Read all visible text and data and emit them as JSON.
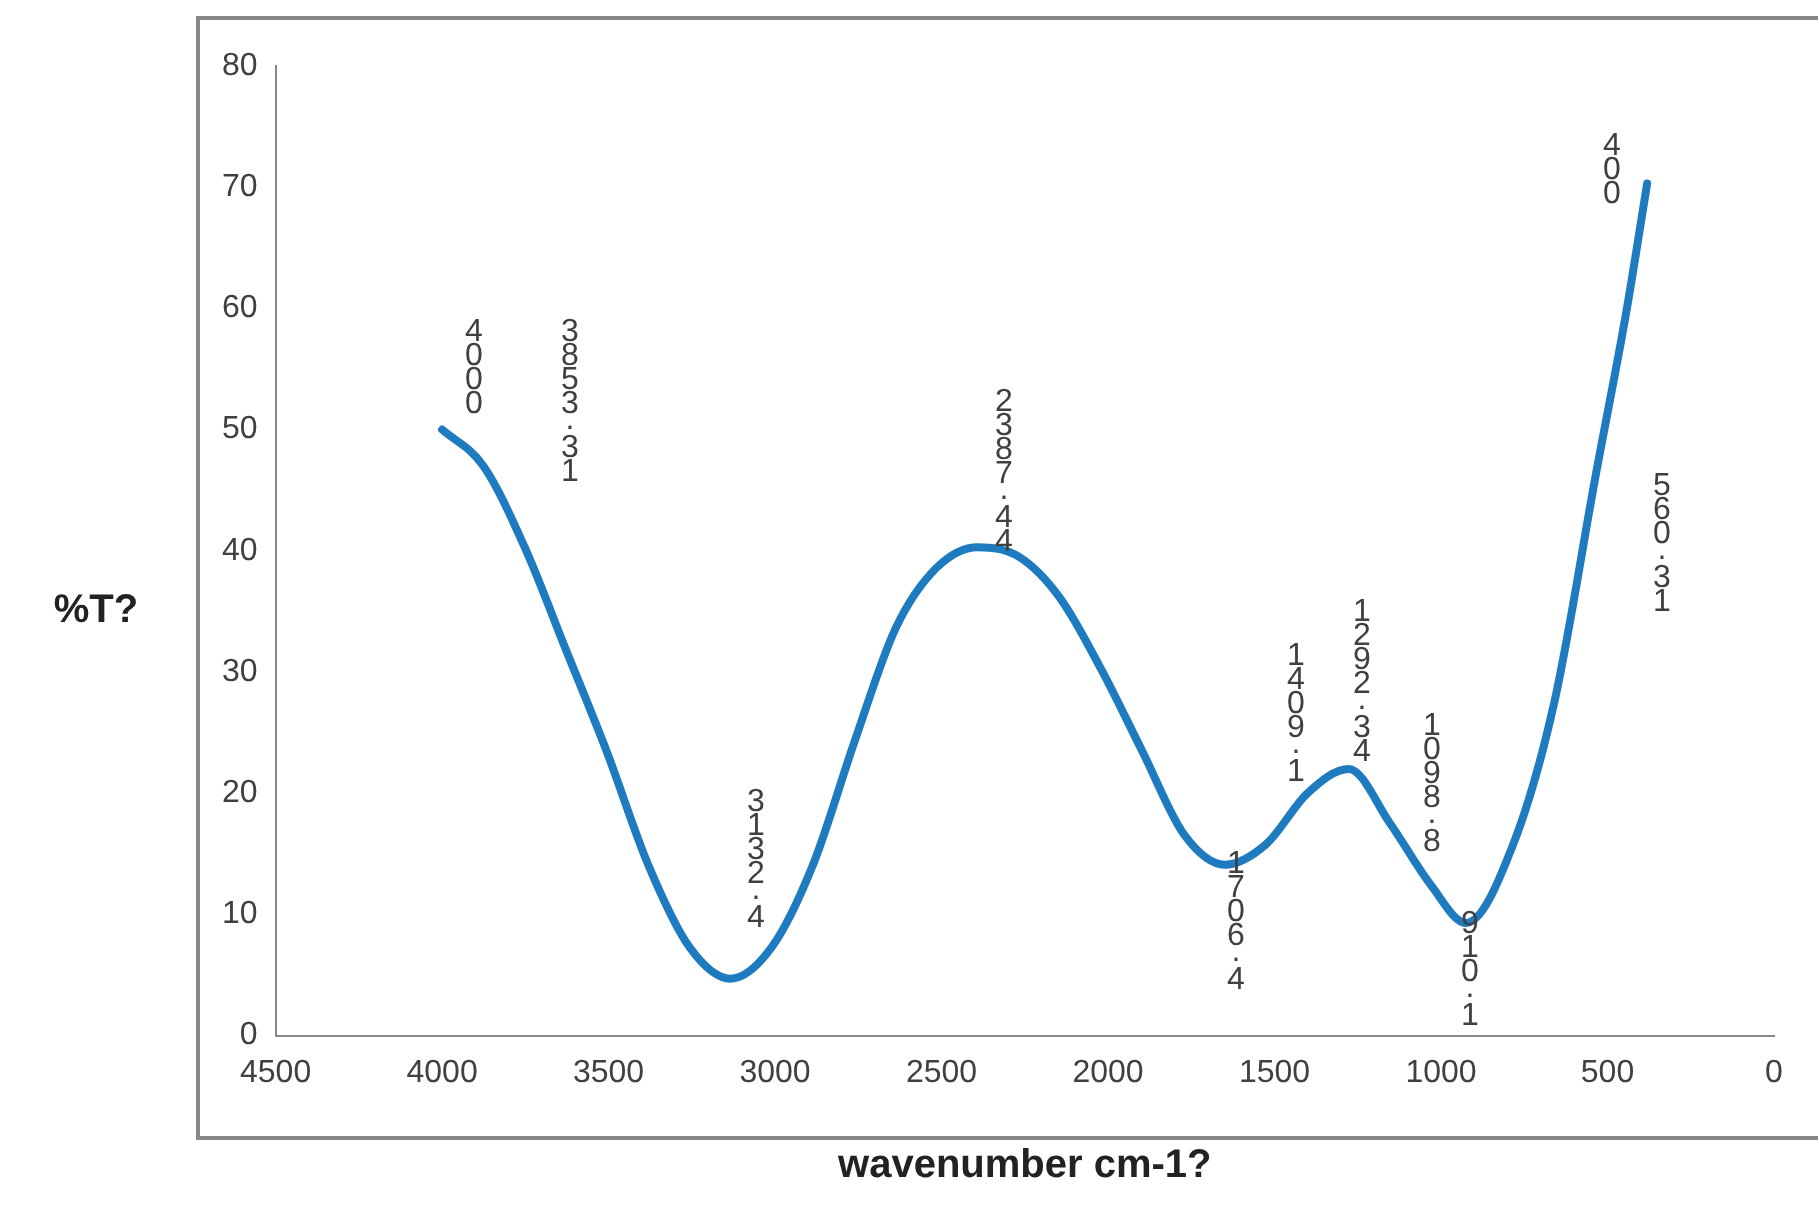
{
  "chart_data": {
    "type": "line",
    "xlabel": "wavenumber cm-1?",
    "ylabel": "%T?",
    "xlim": [
      4500,
      0
    ],
    "xticks": [
      4500,
      4000,
      3500,
      3000,
      2500,
      2000,
      1500,
      1000,
      500,
      0
    ],
    "ylim": [
      0,
      80
    ],
    "yticks": [
      0,
      10,
      20,
      30,
      40,
      50,
      60,
      70,
      80
    ],
    "grid": false,
    "legend": false,
    "marker": "none",
    "line_style": "solid",
    "series": [
      {
        "color": "#1f7bbf",
        "x": [
          4000,
          3876,
          3752,
          3629,
          3505,
          3381,
          3257,
          3134,
          3010,
          2886,
          2762,
          2638,
          2515,
          2391,
          2267,
          2144,
          2020,
          1896,
          1772,
          1649,
          1525,
          1401,
          1277,
          1153,
          1030,
          925,
          783,
          659,
          535,
          443,
          381
        ],
        "values": [
          50,
          47,
          40.3,
          31.9,
          23.4,
          14.1,
          7.3,
          4.7,
          7.3,
          14.1,
          24.2,
          33.6,
          38.6,
          40.3,
          39.5,
          36.1,
          30.2,
          23.4,
          16.6,
          14.1,
          15.8,
          20,
          22,
          17.5,
          12.4,
          9.3,
          15.8,
          27.6,
          46.3,
          59.8,
          70.3
        ]
      }
    ],
    "annotations": [
      "4000",
      "3853.31",
      "3132.4",
      "2387.44",
      "1706.4",
      "1409.1",
      "1292.34",
      "1098.8",
      "910.1",
      "400",
      "560.31"
    ]
  }
}
